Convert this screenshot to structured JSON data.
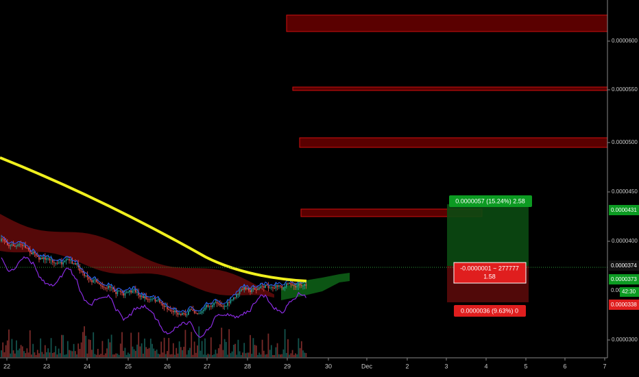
{
  "time_axis": {
    "labels": [
      "22",
      "23",
      "24",
      "25",
      "26",
      "27",
      "28",
      "29",
      "30",
      "Dec",
      "2",
      "3",
      "4",
      "5",
      "6",
      "7"
    ]
  },
  "price_axis": {
    "labels": [
      "0.0000600",
      "0.0000550",
      "0.0000500",
      "0.0000450",
      "0.0000400",
      "0.0000300"
    ]
  },
  "price_markers": {
    "target": "0.0000431",
    "last": "0.0000374",
    "current": "0.0000373",
    "countdown": "42:30",
    "hidden": "0.000",
    "stop": "0.0000338"
  },
  "position": {
    "profit_label": "0.0000057 (15.24%) 2.58",
    "center_line1": "-0.0000001 ~ 277777",
    "center_line2": "1.58",
    "loss_label": "0.0000036 (9.63%) 0"
  }
}
